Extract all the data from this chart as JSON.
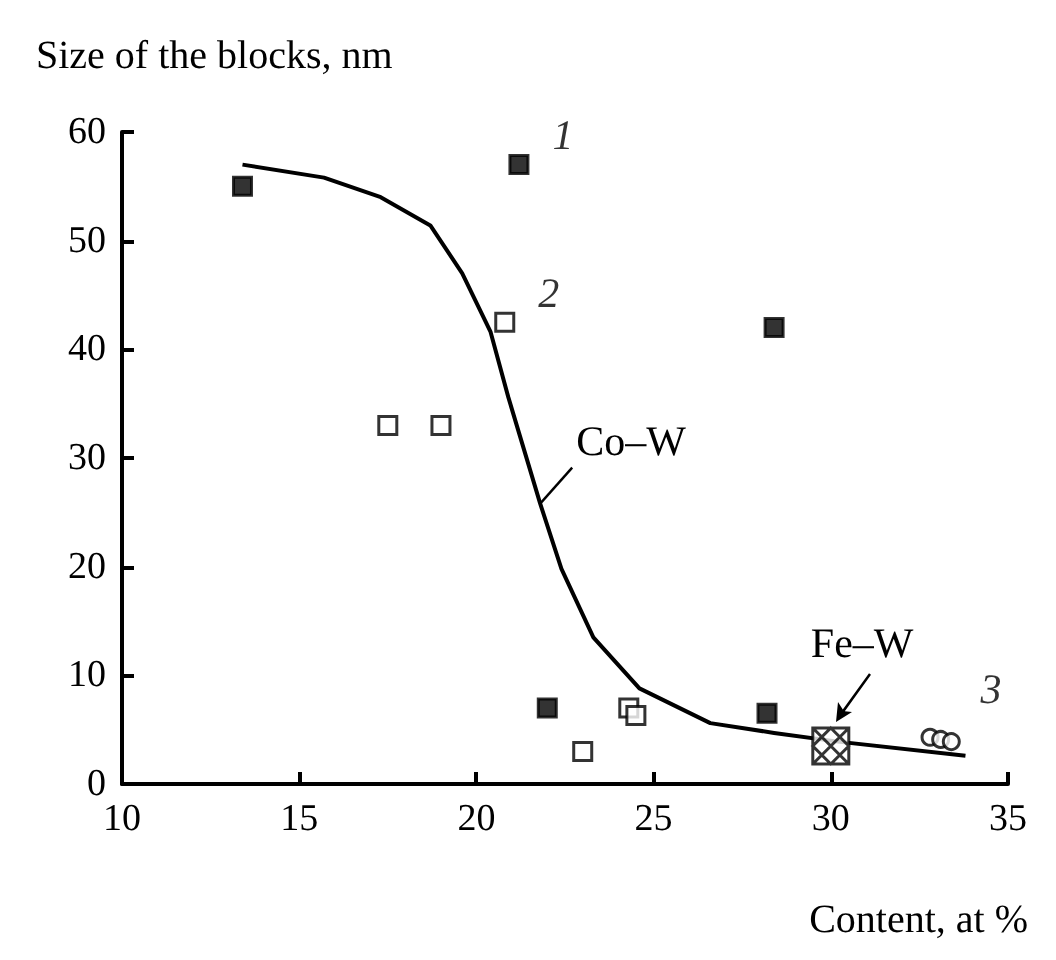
{
  "chart_data": {
    "type": "scatter",
    "ylabel": "Size of the blocks, nm",
    "xlabel": "Content, at %",
    "xlim": [
      10,
      35
    ],
    "xticks": [
      10,
      15,
      20,
      25,
      30,
      35
    ],
    "ylim": [
      0,
      60
    ],
    "yticks": [
      0,
      10,
      20,
      30,
      40,
      50,
      60
    ],
    "grid": false,
    "legend": false,
    "series": [
      {
        "name": "1",
        "marker": "square",
        "color": "#000000",
        "x": [
          13.4,
          21.2,
          22,
          28.2,
          28.4
        ],
        "values": [
          55,
          57,
          7,
          6.5,
          42
        ]
      },
      {
        "name": "2",
        "marker": "square",
        "color": "#ffffff",
        "x": [
          17.5,
          19,
          20.8,
          23,
          24.3,
          24.5
        ],
        "values": [
          33,
          33,
          42.5,
          3,
          7,
          6.3
        ]
      },
      {
        "name": "3",
        "marker": "circle",
        "color": "#ffffff",
        "x": [
          32.8,
          33.1,
          33.4
        ],
        "values": [
          4.3,
          4.1,
          3.9
        ]
      },
      {
        "marker": "cross",
        "color": "#ffffff",
        "x": [
          30
        ],
        "values": [
          3.5
        ]
      },
      {
        "type": "line",
        "marker": "none",
        "line_style": "solid",
        "color": "#000000",
        "x": [
          13.4,
          15.7,
          17.3,
          18.7,
          19.6,
          20.4,
          20.9,
          21.8,
          22.4,
          23.3,
          24.6,
          26.6,
          28.4,
          30.2,
          33.8
        ],
        "values": [
          57,
          55.8,
          54,
          51.4,
          47,
          41.6,
          35.6,
          25.8,
          19.8,
          13.5,
          8.8,
          5.6,
          4.7,
          3.9,
          2.6
        ]
      }
    ],
    "annotations": [
      {
        "text": "Co–W",
        "x": 21.8,
        "y": 25.8
      },
      {
        "text": "Fe–W",
        "x": 30,
        "y": 3.5
      }
    ]
  }
}
